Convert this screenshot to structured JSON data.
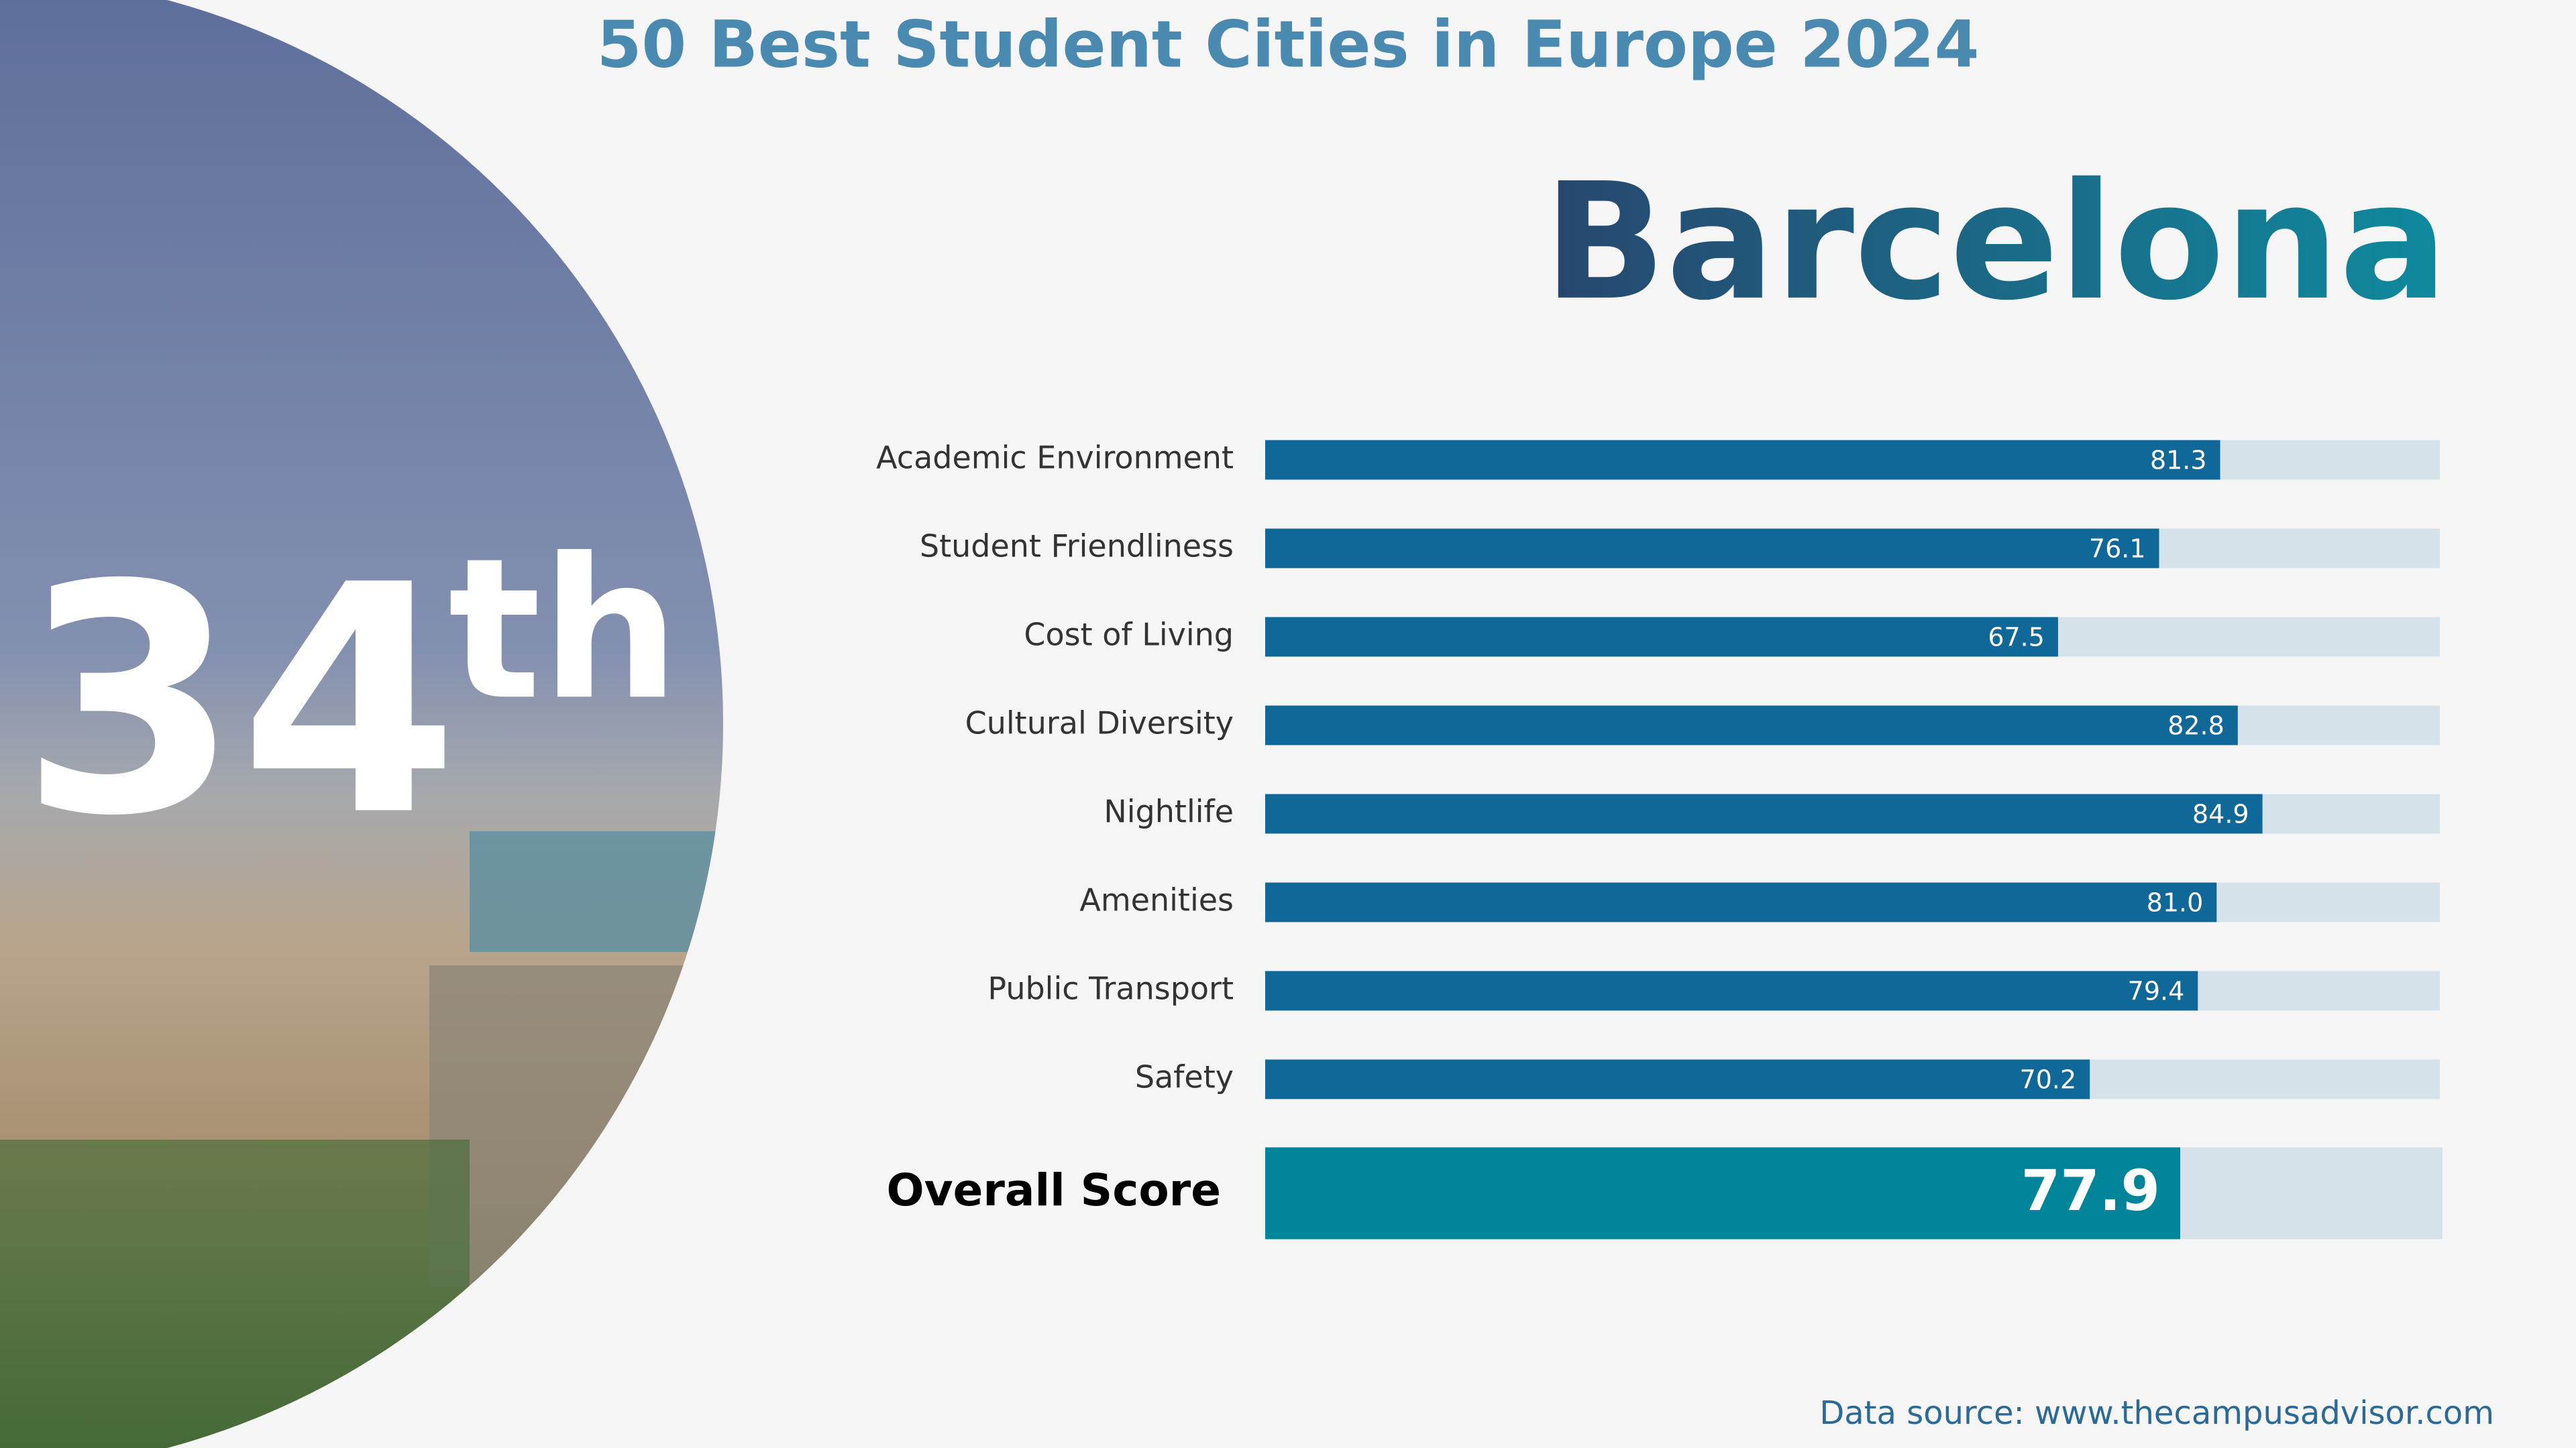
{
  "chart_data": {
    "type": "bar",
    "orientation": "horizontal",
    "title": "50 Best Student Cities in Europe 2024",
    "city": "Barcelona",
    "rank": "34",
    "rank_suffix": "th",
    "categories": [
      "Academic Environment",
      "Student Friendliness",
      "Cost of Living",
      "Cultural Diversity",
      "Nightlife",
      "Amenities",
      "Public Transport",
      "Safety"
    ],
    "values": [
      81.3,
      76.1,
      67.5,
      82.8,
      84.9,
      81,
      79.4,
      70.2
    ],
    "value_labels": [
      "81.3",
      "76.1",
      "67.5",
      "82.8",
      "84.9",
      "81.0",
      "79.4",
      "70.2"
    ],
    "color": "#106898",
    "xlim": [
      0,
      100
    ],
    "overall": {
      "label": "Overall Score",
      "value": 77.9,
      "value_label": "77.9",
      "color": "#00849a"
    },
    "source": "Data source: www.thecampusadvisor.com"
  }
}
